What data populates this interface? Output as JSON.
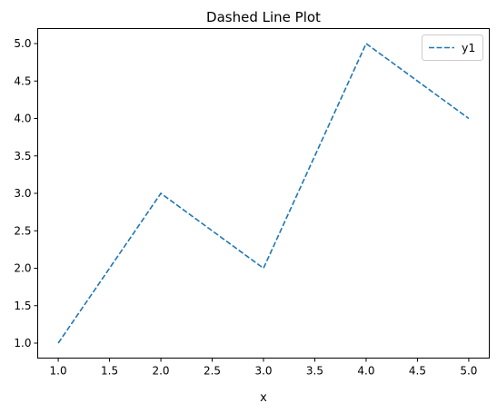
{
  "chart_data": {
    "type": "line",
    "title": "Dashed Line Plot",
    "xlabel": "x",
    "ylabel": "",
    "x": [
      1,
      2,
      3,
      4,
      5
    ],
    "series": [
      {
        "name": "y1",
        "values": [
          1,
          3,
          2,
          5,
          4
        ],
        "color": "#1f77b4",
        "line_style": "dashed"
      }
    ],
    "xlim": [
      0.8,
      5.2
    ],
    "ylim": [
      0.8,
      5.2
    ],
    "xticks": [
      1.0,
      1.5,
      2.0,
      2.5,
      3.0,
      3.5,
      4.0,
      4.5,
      5.0
    ],
    "yticks": [
      1.0,
      1.5,
      2.0,
      2.5,
      3.0,
      3.5,
      4.0,
      4.5,
      5.0
    ],
    "xtick_labels": [
      "1.0",
      "1.5",
      "2.0",
      "2.5",
      "3.0",
      "3.5",
      "4.0",
      "4.5",
      "5.0"
    ],
    "ytick_labels": [
      "1.0",
      "1.5",
      "2.0",
      "2.5",
      "3.0",
      "3.5",
      "4.0",
      "4.5",
      "5.0"
    ],
    "grid": false,
    "legend_position": "top-right"
  }
}
